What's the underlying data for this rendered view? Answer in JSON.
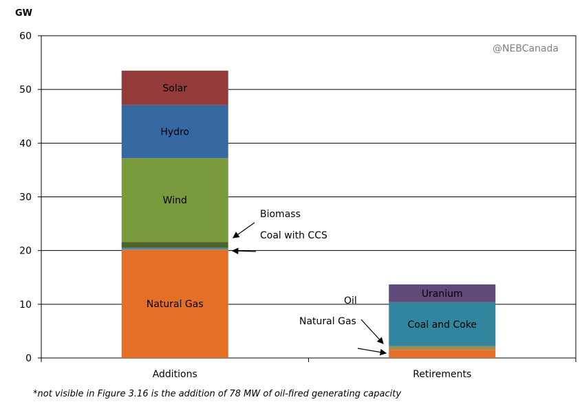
{
  "chart_data": {
    "type": "bar",
    "stacked": true,
    "ylabel": "GW",
    "ylim": [
      0,
      60
    ],
    "yticks": [
      0,
      10,
      20,
      30,
      40,
      50,
      60
    ],
    "grid": true,
    "watermark": "@NEBCanada",
    "categories": [
      "Additions",
      "Retirements"
    ],
    "stacks": [
      {
        "category": "Additions",
        "segments": [
          {
            "name": "Natural Gas",
            "value": 20.2,
            "color": "#E46F26",
            "label": true
          },
          {
            "name": "Coal with CCS",
            "value": 0.3,
            "color": "#3B8FC0",
            "label": false
          },
          {
            "name": "Biomass",
            "value": 1.1,
            "color": "#4F6228",
            "label": false
          },
          {
            "name": "Wind",
            "value": 15.6,
            "color": "#7A9A3E",
            "label": true
          },
          {
            "name": "Hydro",
            "value": 9.9,
            "color": "#3868A0",
            "label": true
          },
          {
            "name": "Solar",
            "value": 6.4,
            "color": "#953A3A",
            "label": true
          }
        ]
      },
      {
        "category": "Retirements",
        "segments": [
          {
            "name": "Natural Gas",
            "value": 1.5,
            "color": "#E46F26",
            "label": false
          },
          {
            "name": "Oil",
            "value": 0.7,
            "color": "#A38A4E",
            "label": false
          },
          {
            "name": "Coal and Coke",
            "value": 8.2,
            "color": "#31859C",
            "label": true
          },
          {
            "name": "Uranium",
            "value": 3.3,
            "color": "#604A7B",
            "label": true
          }
        ]
      }
    ],
    "annotations": [
      "Biomass",
      "Coal with CCS",
      "Oil",
      "Natural Gas"
    ]
  },
  "footnote": "*not visible in Figure 3.16 is the addition of 78 MW of oil-fired generating capacity"
}
